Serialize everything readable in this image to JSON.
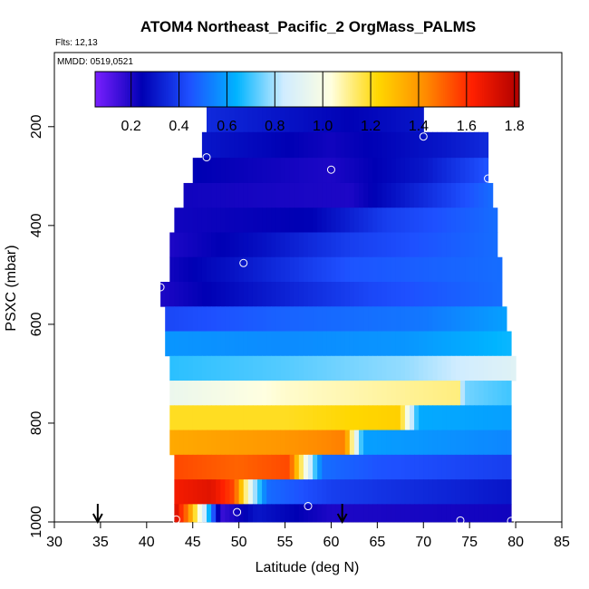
{
  "chart_data": {
    "type": "heatmap",
    "title": "ATOM4 Northeast_Pacific_2 OrgMass_PALMS",
    "flights_label": "Flts: 12,13",
    "dates_label": "MMDD: 0519,0521",
    "xlabel": "Latitude (deg N)",
    "ylabel": "PSXC (mbar)",
    "xlim": [
      30,
      85
    ],
    "ylim": [
      1000,
      50
    ],
    "y_reversed": true,
    "x_ticks": [
      30,
      35,
      40,
      45,
      50,
      55,
      60,
      65,
      70,
      75,
      80,
      85
    ],
    "y_ticks": [
      200,
      400,
      600,
      800,
      1000
    ],
    "colorbar": {
      "range": [
        0.05,
        1.82
      ],
      "ticks": [
        0.2,
        0.4,
        0.6,
        0.8,
        1.0,
        1.2,
        1.4,
        1.6,
        1.8
      ],
      "tick_labels": [
        "0.2",
        "0.4",
        "0.6",
        "0.8",
        "1.0",
        "1.2",
        "1.4",
        "1.6",
        "1.8"
      ],
      "colors": [
        "#7a1fff",
        "#0000b4",
        "#1e50ff",
        "#00b4ff",
        "#d0ecff",
        "#ffffe0",
        "#ffd700",
        "#ff8c00",
        "#ff2000",
        "#b00000"
      ]
    },
    "rows": [
      {
        "p_top": 160,
        "p_bot": 211,
        "lat_min": 46.5,
        "lat_max": 70.0,
        "stops": [
          [
            46.5,
            0.35
          ],
          [
            54,
            0.3
          ],
          [
            62,
            0.25
          ],
          [
            70,
            0.3
          ]
        ]
      },
      {
        "p_top": 211,
        "p_bot": 263,
        "lat_min": 46.0,
        "lat_max": 77.0,
        "stops": [
          [
            46,
            0.3
          ],
          [
            60,
            0.22
          ],
          [
            72,
            0.3
          ],
          [
            77,
            0.35
          ]
        ]
      },
      {
        "p_top": 263,
        "p_bot": 314,
        "lat_min": 45.0,
        "lat_max": 77.0,
        "stops": [
          [
            45,
            0.25
          ],
          [
            60,
            0.2
          ],
          [
            70,
            0.3
          ],
          [
            77,
            0.45
          ]
        ]
      },
      {
        "p_top": 314,
        "p_bot": 364,
        "lat_min": 44.0,
        "lat_max": 77.5,
        "stops": [
          [
            44,
            0.22
          ],
          [
            62,
            0.2
          ],
          [
            70,
            0.35
          ],
          [
            77.5,
            0.5
          ]
        ]
      },
      {
        "p_top": 364,
        "p_bot": 414,
        "lat_min": 43.0,
        "lat_max": 78.0,
        "stops": [
          [
            43,
            0.22
          ],
          [
            58,
            0.25
          ],
          [
            66,
            0.4
          ],
          [
            78,
            0.5
          ]
        ]
      },
      {
        "p_top": 414,
        "p_bot": 464,
        "lat_min": 42.5,
        "lat_max": 78.0,
        "stops": [
          [
            42.5,
            0.2
          ],
          [
            52,
            0.28
          ],
          [
            62,
            0.4
          ],
          [
            78,
            0.5
          ]
        ]
      },
      {
        "p_top": 464,
        "p_bot": 514,
        "lat_min": 42.5,
        "lat_max": 78.5,
        "stops": [
          [
            42.5,
            0.22
          ],
          [
            50,
            0.3
          ],
          [
            62,
            0.45
          ],
          [
            78.5,
            0.5
          ]
        ]
      },
      {
        "p_top": 514,
        "p_bot": 564,
        "lat_min": 41.5,
        "lat_max": 78.5,
        "stops": [
          [
            41.5,
            0.2
          ],
          [
            52,
            0.3
          ],
          [
            64,
            0.42
          ],
          [
            78.5,
            0.5
          ]
        ]
      },
      {
        "p_top": 564,
        "p_bot": 614,
        "lat_min": 42.0,
        "lat_max": 79.0,
        "stops": [
          [
            42,
            0.42
          ],
          [
            55,
            0.48
          ],
          [
            70,
            0.52
          ],
          [
            79,
            0.6
          ]
        ]
      },
      {
        "p_top": 614,
        "p_bot": 664,
        "lat_min": 42.0,
        "lat_max": 79.5,
        "stops": [
          [
            42,
            0.58
          ],
          [
            55,
            0.56
          ],
          [
            68,
            0.58
          ],
          [
            79.5,
            0.65
          ]
        ]
      },
      {
        "p_top": 664,
        "p_bot": 714,
        "lat_min": 42.5,
        "lat_max": 80.0,
        "stops": [
          [
            42.5,
            0.68
          ],
          [
            55,
            0.72
          ],
          [
            68,
            0.78
          ],
          [
            80,
            0.9
          ]
        ]
      },
      {
        "p_top": 714,
        "p_bot": 764,
        "lat_min": 42.5,
        "lat_max": 79.5,
        "stops": [
          [
            42.5,
            0.95
          ],
          [
            55,
            1.05
          ],
          [
            74,
            1.12
          ],
          [
            74.3,
            0.75
          ],
          [
            79.5,
            0.7
          ]
        ]
      },
      {
        "p_top": 764,
        "p_bot": 814,
        "lat_min": 42.5,
        "lat_max": 79.5,
        "stops": [
          [
            42.5,
            1.2
          ],
          [
            55,
            1.2
          ],
          [
            67.5,
            1.25
          ],
          [
            68.5,
            0.9
          ],
          [
            69.5,
            0.62
          ],
          [
            79.5,
            0.6
          ]
        ]
      },
      {
        "p_top": 814,
        "p_bot": 864,
        "lat_min": 42.5,
        "lat_max": 79.5,
        "stops": [
          [
            42.5,
            1.35
          ],
          [
            55,
            1.4
          ],
          [
            61.5,
            1.45
          ],
          [
            62.5,
            1.0
          ],
          [
            63.5,
            0.6
          ],
          [
            79.5,
            0.55
          ]
        ]
      },
      {
        "p_top": 864,
        "p_bot": 914,
        "lat_min": 43.0,
        "lat_max": 79.5,
        "stops": [
          [
            43,
            1.55
          ],
          [
            50,
            1.5
          ],
          [
            55.5,
            1.55
          ],
          [
            57.5,
            0.9
          ],
          [
            59,
            0.5
          ],
          [
            65,
            0.45
          ],
          [
            79.5,
            0.4
          ]
        ]
      },
      {
        "p_top": 914,
        "p_bot": 964,
        "lat_min": 43.0,
        "lat_max": 79.5,
        "stops": [
          [
            43,
            1.65
          ],
          [
            47,
            1.7
          ],
          [
            49.5,
            1.55
          ],
          [
            51.5,
            0.85
          ],
          [
            53,
            0.5
          ],
          [
            60,
            0.4
          ],
          [
            79.5,
            0.3
          ]
        ]
      },
      {
        "p_top": 964,
        "p_bot": 1000,
        "lat_min": 43.0,
        "lat_max": 79.5,
        "stops": [
          [
            43,
            1.75
          ],
          [
            44.5,
            1.45
          ],
          [
            46.5,
            0.75
          ],
          [
            48,
            0.15
          ],
          [
            52,
            0.3
          ],
          [
            60,
            0.2
          ],
          [
            79.5,
            0.22
          ]
        ]
      }
    ],
    "points": [
      {
        "x": 70.0,
        "y": 220
      },
      {
        "x": 46.5,
        "y": 262
      },
      {
        "x": 60.0,
        "y": 287
      },
      {
        "x": 77.0,
        "y": 305
      },
      {
        "x": 50.5,
        "y": 476
      },
      {
        "x": 41.5,
        "y": 525
      },
      {
        "x": 57.5,
        "y": 968
      },
      {
        "x": 49.8,
        "y": 980
      },
      {
        "x": 43.2,
        "y": 995
      },
      {
        "x": 74.0,
        "y": 997
      },
      {
        "x": 79.5,
        "y": 998
      }
    ],
    "arrows": [
      34.7,
      61.2
    ]
  }
}
